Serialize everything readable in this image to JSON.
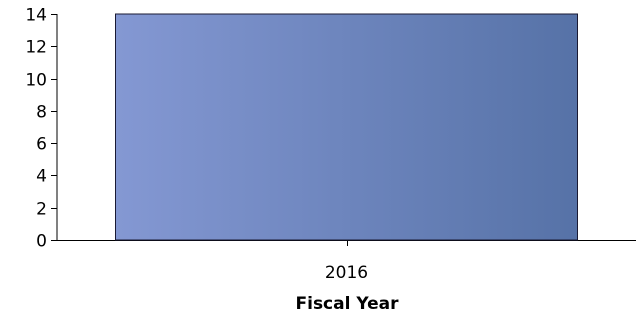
{
  "chart_data": {
    "type": "bar",
    "categories": [
      "2016"
    ],
    "values": [
      14
    ],
    "title": "",
    "xlabel": "Fiscal Year",
    "ylabel": "",
    "ylim": [
      0,
      14
    ],
    "yticks": [
      0,
      2,
      4,
      6,
      8,
      10,
      12,
      14
    ],
    "grid": false,
    "legend": "none"
  },
  "colors": {
    "bar_start": "#8498d3",
    "bar_end": "#5672a7",
    "bar_stroke": "#1a1a33",
    "axis": "#000000"
  }
}
